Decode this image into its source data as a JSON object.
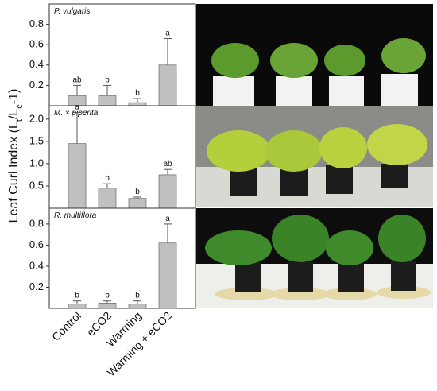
{
  "y_label_parts": [
    "Leaf Curl Index (L",
    "t",
    "/L",
    "c",
    "-1)"
  ],
  "chart_data": [
    {
      "type": "bar",
      "title": "P. vulgaris",
      "color": "#c0c0c0",
      "values": [
        0.1,
        0.1,
        0.03,
        0.4
      ],
      "errors": [
        0.1,
        0.1,
        0.04,
        0.26
      ],
      "letters": [
        "ab",
        "b",
        "b",
        "a"
      ],
      "ylim": [
        0,
        1.0
      ],
      "yticks": [
        0.2,
        0.4,
        0.6,
        0.8
      ]
    },
    {
      "type": "bar",
      "title": "M. × piperita",
      "color": "#c0c0c0",
      "values": [
        1.45,
        0.45,
        0.22,
        0.75
      ],
      "errors": [
        0.7,
        0.1,
        0.03,
        0.12
      ],
      "letters": [
        "a",
        "b",
        "b",
        "ab"
      ],
      "ylim": [
        0,
        2.3
      ],
      "yticks": [
        0.5,
        {
          "value": 1,
          "label": "1.0"
        },
        1.5,
        {
          "value": 2,
          "label": "2.0"
        }
      ]
    },
    {
      "type": "bar",
      "title": "R. multiflora",
      "color": "#c0c0c0",
      "categories": [
        "Control",
        "eCO2",
        "Warming",
        "Warming + eCO2"
      ],
      "values": [
        0.04,
        0.05,
        0.04,
        0.62
      ],
      "errors": [
        0.03,
        0.02,
        0.03,
        0.18
      ],
      "letters": [
        "b",
        "b",
        "b",
        "a"
      ],
      "ylim": [
        0,
        0.95
      ],
      "yticks": [
        0.2,
        0.4,
        0.6,
        0.8
      ]
    }
  ]
}
